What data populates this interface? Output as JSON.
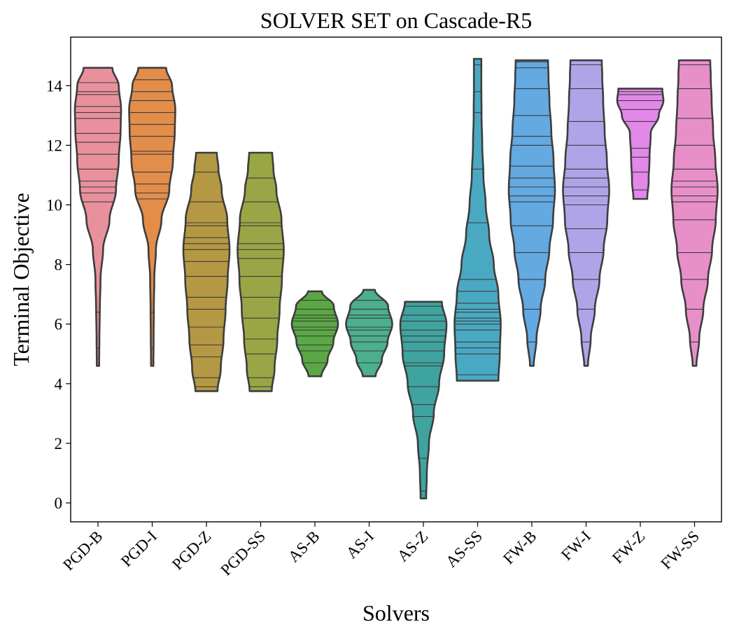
{
  "chart_data": {
    "type": "violin",
    "title": "SOLVER SET on Cascade-R5",
    "xlabel": "Solvers",
    "ylabel": "Terminal Objective",
    "ylim": [
      -0.6,
      15.6
    ],
    "yticks": [
      0,
      2,
      4,
      6,
      8,
      10,
      12,
      14
    ],
    "grid": false,
    "legend": "none",
    "categories": [
      "PGD-B",
      "PGD-I",
      "PGD-Z",
      "PGD-SS",
      "AS-B",
      "AS-I",
      "AS-Z",
      "AS-SS",
      "FW-B",
      "FW-I",
      "FW-Z",
      "FW-SS"
    ],
    "series": [
      {
        "color": "#e8919c",
        "min": 4.6,
        "max": 14.6,
        "profile": [
          [
            4.6,
            0.05
          ],
          [
            5.5,
            0.06
          ],
          [
            6.5,
            0.08
          ],
          [
            7.5,
            0.11
          ],
          [
            8.5,
            0.22
          ],
          [
            9.5,
            0.5
          ],
          [
            10.5,
            0.78
          ],
          [
            11.5,
            0.9
          ],
          [
            12.5,
            0.98
          ],
          [
            13.2,
            1.0
          ],
          [
            14.0,
            0.9
          ],
          [
            14.6,
            0.62
          ]
        ],
        "points": [
          5.2,
          6.4,
          10.1,
          10.4,
          10.6,
          10.8,
          11.2,
          11.7,
          12.1,
          12.4,
          12.9,
          13.1,
          13.3,
          13.7,
          13.8,
          14.1
        ]
      },
      {
        "color": "#e38d4a",
        "min": 4.6,
        "max": 14.6,
        "profile": [
          [
            4.6,
            0.05
          ],
          [
            5.5,
            0.06
          ],
          [
            6.5,
            0.07
          ],
          [
            7.5,
            0.09
          ],
          [
            8.5,
            0.16
          ],
          [
            9.5,
            0.4
          ],
          [
            10.5,
            0.74
          ],
          [
            11.5,
            0.9
          ],
          [
            12.5,
            0.98
          ],
          [
            13.2,
            1.0
          ],
          [
            14.0,
            0.86
          ],
          [
            14.6,
            0.6
          ]
        ],
        "points": [
          5.2,
          6.4,
          10.2,
          10.4,
          10.7,
          11.1,
          11.7,
          11.8,
          12.3,
          12.7,
          13.1,
          13.5,
          13.8,
          14.2
        ]
      },
      {
        "color": "#b59843",
        "min": 3.75,
        "max": 11.75,
        "profile": [
          [
            3.75,
            0.48
          ],
          [
            4.5,
            0.62
          ],
          [
            5.5,
            0.74
          ],
          [
            6.5,
            0.83
          ],
          [
            7.5,
            0.92
          ],
          [
            8.5,
            1.0
          ],
          [
            9.5,
            0.9
          ],
          [
            10.5,
            0.66
          ],
          [
            11.2,
            0.52
          ],
          [
            11.75,
            0.45
          ]
        ],
        "points": [
          3.9,
          4.2,
          4.9,
          5.3,
          5.9,
          6.5,
          6.9,
          7.6,
          8.1,
          8.5,
          8.7,
          8.9,
          9.3,
          9.4,
          10.1,
          11.1
        ]
      },
      {
        "color": "#9aa645",
        "min": 3.75,
        "max": 11.75,
        "profile": [
          [
            3.75,
            0.48
          ],
          [
            4.5,
            0.6
          ],
          [
            5.5,
            0.72
          ],
          [
            6.5,
            0.82
          ],
          [
            7.5,
            0.92
          ],
          [
            8.5,
            1.0
          ],
          [
            9.5,
            0.9
          ],
          [
            10.5,
            0.68
          ],
          [
            11.2,
            0.55
          ],
          [
            11.75,
            0.5
          ]
        ],
        "points": [
          3.9,
          4.2,
          5.0,
          5.5,
          6.2,
          6.9,
          7.6,
          8.2,
          8.5,
          8.7,
          9.3,
          9.4,
          10.1,
          10.9
        ]
      },
      {
        "color": "#5aa845",
        "min": 4.25,
        "max": 7.1,
        "profile": [
          [
            4.25,
            0.28
          ],
          [
            4.8,
            0.55
          ],
          [
            5.4,
            0.8
          ],
          [
            6.0,
            1.0
          ],
          [
            6.6,
            0.82
          ],
          [
            7.1,
            0.3
          ]
        ],
        "points": [
          4.7,
          5.1,
          5.3,
          5.6,
          5.8,
          5.9,
          6.1,
          6.2,
          6.3,
          6.5,
          6.8
        ]
      },
      {
        "color": "#4caf8d",
        "min": 4.25,
        "max": 7.15,
        "profile": [
          [
            4.25,
            0.28
          ],
          [
            4.8,
            0.55
          ],
          [
            5.4,
            0.8
          ],
          [
            6.0,
            1.0
          ],
          [
            6.6,
            0.82
          ],
          [
            7.15,
            0.25
          ]
        ],
        "points": [
          4.7,
          5.1,
          5.4,
          5.6,
          5.8,
          5.9,
          6.2,
          6.3,
          6.5,
          6.8
        ]
      },
      {
        "color": "#3fa3a0",
        "min": 0.15,
        "max": 6.75,
        "profile": [
          [
            0.15,
            0.12
          ],
          [
            1.0,
            0.15
          ],
          [
            2.0,
            0.24
          ],
          [
            3.0,
            0.45
          ],
          [
            4.0,
            0.68
          ],
          [
            5.0,
            0.9
          ],
          [
            6.0,
            1.0
          ],
          [
            6.75,
            0.8
          ]
        ],
        "points": [
          0.4,
          1.5,
          2.9,
          3.3,
          3.9,
          4.6,
          4.7,
          5.1,
          5.4,
          5.6,
          5.8,
          6.1,
          6.3,
          6.6
        ]
      },
      {
        "color": "#4aa9c2",
        "min": 4.1,
        "max": 14.9,
        "profile": [
          [
            4.1,
            0.9
          ],
          [
            5.0,
            0.96
          ],
          [
            6.0,
            1.0
          ],
          [
            7.0,
            0.9
          ],
          [
            8.0,
            0.7
          ],
          [
            9.0,
            0.5
          ],
          [
            10.0,
            0.35
          ],
          [
            11.0,
            0.25
          ],
          [
            12.0,
            0.2
          ],
          [
            13.0,
            0.17
          ],
          [
            14.0,
            0.16
          ],
          [
            14.9,
            0.16
          ]
        ],
        "points": [
          4.3,
          5.0,
          5.2,
          5.4,
          5.8,
          6.0,
          6.1,
          6.2,
          6.4,
          6.5,
          6.7,
          7.1,
          7.5,
          9.4,
          11.2,
          13.1,
          13.8,
          14.7
        ]
      },
      {
        "color": "#63a9e2",
        "min": 4.6,
        "max": 14.85,
        "profile": [
          [
            4.6,
            0.08
          ],
          [
            5.5,
            0.2
          ],
          [
            6.5,
            0.38
          ],
          [
            7.5,
            0.58
          ],
          [
            8.5,
            0.76
          ],
          [
            9.5,
            0.92
          ],
          [
            10.5,
            1.0
          ],
          [
            11.5,
            0.94
          ],
          [
            12.5,
            0.84
          ],
          [
            13.5,
            0.76
          ],
          [
            14.3,
            0.72
          ],
          [
            14.85,
            0.7
          ]
        ],
        "points": [
          5.4,
          6.5,
          7.5,
          8.4,
          9.3,
          10.1,
          10.3,
          10.6,
          10.9,
          11.3,
          12.0,
          12.3,
          13.0,
          13.9,
          14.6,
          14.8
        ]
      },
      {
        "color": "#b0a4e8",
        "min": 4.6,
        "max": 14.85,
        "profile": [
          [
            4.6,
            0.08
          ],
          [
            5.5,
            0.2
          ],
          [
            6.5,
            0.38
          ],
          [
            7.5,
            0.58
          ],
          [
            8.5,
            0.76
          ],
          [
            9.5,
            0.92
          ],
          [
            10.5,
            1.0
          ],
          [
            11.5,
            0.9
          ],
          [
            12.5,
            0.8
          ],
          [
            13.5,
            0.74
          ],
          [
            14.3,
            0.7
          ],
          [
            14.85,
            0.68
          ]
        ],
        "points": [
          5.4,
          6.5,
          7.5,
          8.4,
          9.2,
          10.0,
          10.3,
          10.6,
          10.9,
          11.2,
          12.0,
          12.8,
          13.9,
          14.7
        ]
      },
      {
        "color": "#e288e8",
        "min": 10.2,
        "max": 13.9,
        "profile": [
          [
            10.2,
            0.3
          ],
          [
            10.8,
            0.36
          ],
          [
            11.6,
            0.4
          ],
          [
            12.4,
            0.45
          ],
          [
            13.0,
            0.8
          ],
          [
            13.5,
            1.0
          ],
          [
            13.9,
            0.95
          ]
        ],
        "points": [
          10.5,
          11.1,
          11.6,
          11.9,
          12.8,
          13.2,
          13.5,
          13.7,
          13.8
        ]
      },
      {
        "color": "#e88fc9",
        "min": 4.6,
        "max": 14.85,
        "profile": [
          [
            4.6,
            0.08
          ],
          [
            5.5,
            0.2
          ],
          [
            6.5,
            0.38
          ],
          [
            7.5,
            0.58
          ],
          [
            8.5,
            0.76
          ],
          [
            9.5,
            0.92
          ],
          [
            10.5,
            1.0
          ],
          [
            11.5,
            0.9
          ],
          [
            12.5,
            0.8
          ],
          [
            13.5,
            0.74
          ],
          [
            14.3,
            0.7
          ],
          [
            14.85,
            0.68
          ]
        ],
        "points": [
          5.4,
          6.5,
          7.5,
          8.4,
          9.5,
          10.1,
          10.3,
          10.6,
          10.8,
          11.2,
          12.0,
          12.9,
          13.9,
          14.7
        ]
      }
    ]
  }
}
